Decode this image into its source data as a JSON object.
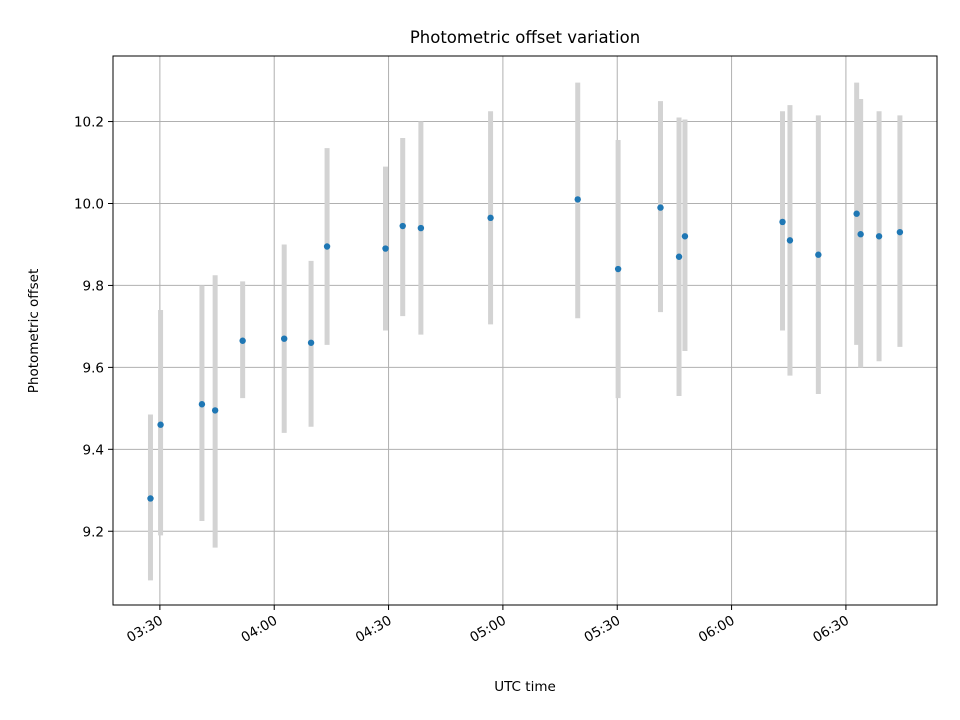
{
  "chart_data": {
    "type": "scatter",
    "title": "Photometric offset variation",
    "xlabel": "UTC time",
    "ylabel": "Photometric offset",
    "x_ticks": [
      "03:30",
      "04:00",
      "04:30",
      "05:00",
      "05:30",
      "06:00",
      "06:30"
    ],
    "y_ticks": [
      "9.2",
      "9.4",
      "9.6",
      "9.8",
      "10.0",
      "10.2"
    ],
    "y_tick_values": [
      9.2,
      9.4,
      9.6,
      9.8,
      10.0,
      10.2
    ],
    "xlim": [
      "03:17:42",
      "06:53:54"
    ],
    "ylim": [
      9.02,
      10.36
    ],
    "grid": true,
    "colors": {
      "point": "#1f77b4",
      "errorbar": "#d3d3d3"
    },
    "series": [
      {
        "points": [
          {
            "x": "03:27:32",
            "y": 9.28,
            "low": 9.08,
            "high": 9.485
          },
          {
            "x": "03:30:11",
            "y": 9.46,
            "low": 9.19,
            "high": 9.74
          },
          {
            "x": "03:41:02",
            "y": 9.51,
            "low": 9.225,
            "high": 9.8
          },
          {
            "x": "03:44:30",
            "y": 9.495,
            "low": 9.16,
            "high": 9.825
          },
          {
            "x": "03:51:43",
            "y": 9.665,
            "low": 9.525,
            "high": 9.81
          },
          {
            "x": "04:02:37",
            "y": 9.67,
            "low": 9.44,
            "high": 9.9
          },
          {
            "x": "04:09:40",
            "y": 9.66,
            "low": 9.455,
            "high": 9.86
          },
          {
            "x": "04:13:52",
            "y": 9.895,
            "low": 9.655,
            "high": 10.135
          },
          {
            "x": "04:29:12",
            "y": 9.89,
            "low": 9.69,
            "high": 10.09
          },
          {
            "x": "04:33:43",
            "y": 9.945,
            "low": 9.725,
            "high": 10.16
          },
          {
            "x": "04:38:29",
            "y": 9.94,
            "low": 9.68,
            "high": 10.2
          },
          {
            "x": "04:56:46",
            "y": 9.965,
            "low": 9.705,
            "high": 10.225
          },
          {
            "x": "05:19:38",
            "y": 10.01,
            "low": 9.72,
            "high": 10.295
          },
          {
            "x": "05:30:14",
            "y": 9.84,
            "low": 9.525,
            "high": 10.155
          },
          {
            "x": "05:41:21",
            "y": 9.99,
            "low": 9.735,
            "high": 10.25
          },
          {
            "x": "05:46:13",
            "y": 9.87,
            "low": 9.53,
            "high": 10.21
          },
          {
            "x": "05:47:46",
            "y": 9.92,
            "low": 9.64,
            "high": 10.205
          },
          {
            "x": "06:13:22",
            "y": 9.955,
            "low": 9.69,
            "high": 10.225
          },
          {
            "x": "06:15:19",
            "y": 9.91,
            "low": 9.58,
            "high": 10.24
          },
          {
            "x": "06:22:46",
            "y": 9.875,
            "low": 9.535,
            "high": 10.215
          },
          {
            "x": "06:32:49",
            "y": 9.975,
            "low": 9.655,
            "high": 10.295
          },
          {
            "x": "06:33:52",
            "y": 9.925,
            "low": 9.6,
            "high": 10.255
          },
          {
            "x": "06:38:42",
            "y": 9.92,
            "low": 9.615,
            "high": 10.225
          },
          {
            "x": "06:44:10",
            "y": 9.93,
            "low": 9.65,
            "high": 10.215
          }
        ]
      }
    ]
  }
}
